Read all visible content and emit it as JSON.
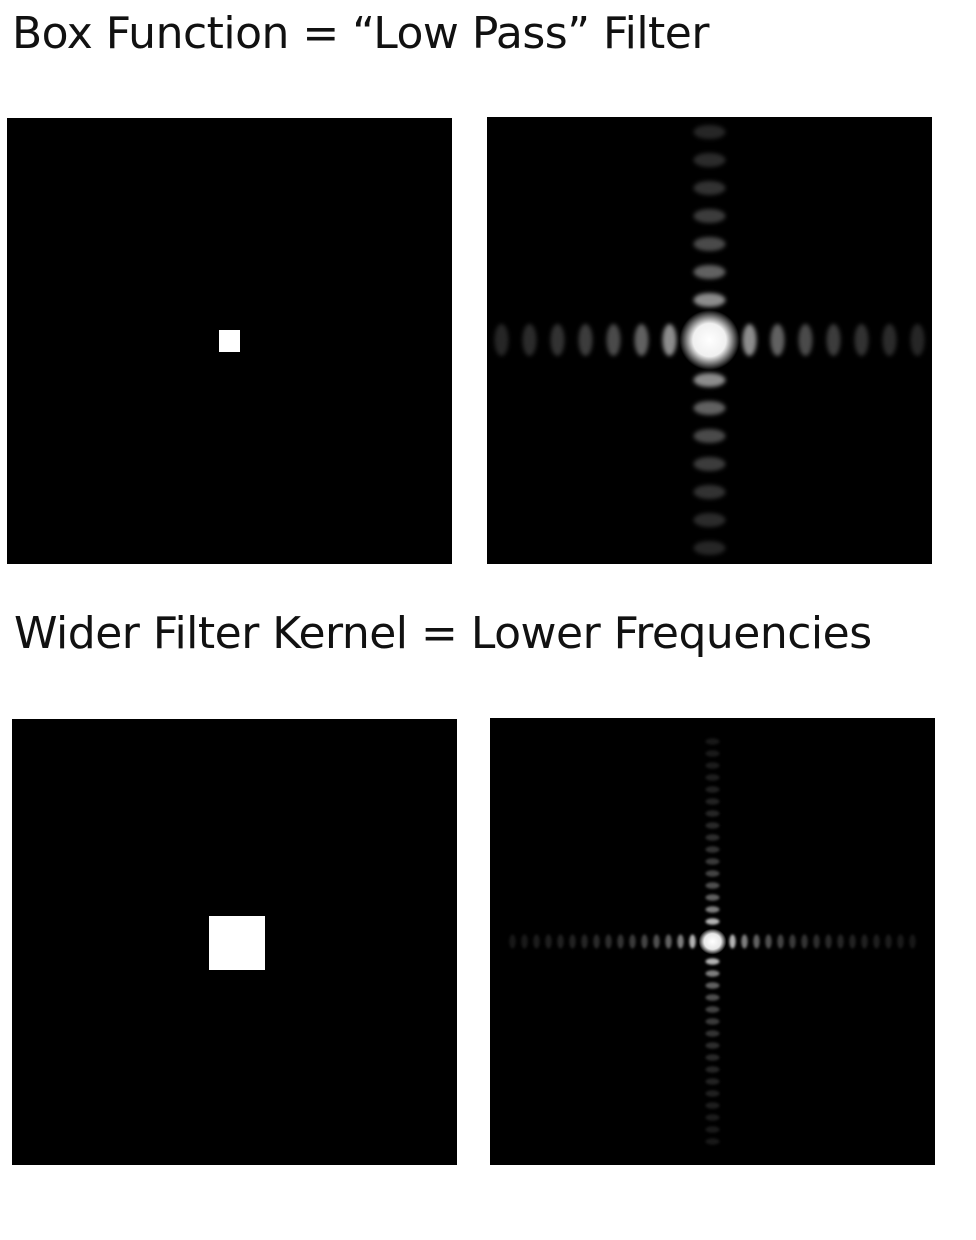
{
  "headings": {
    "top": "Box Function = “Low Pass” Filter",
    "bottom": "Wider Filter Kernel = Lower Frequencies"
  },
  "panels": [
    {
      "name": "narrow-box-function",
      "kind": "spatial",
      "box_width_fraction": 0.047
    },
    {
      "name": "narrow-box-spectrum",
      "kind": "frequency",
      "lobe_spacing_fraction": 0.063
    },
    {
      "name": "wide-box-function",
      "kind": "spatial",
      "box_width_fraction": 0.125
    },
    {
      "name": "wide-box-spectrum",
      "kind": "frequency",
      "lobe_spacing_fraction": 0.04
    }
  ],
  "colors": {
    "background": "#ffffff",
    "panel": "#000000",
    "signal": "#ffffff",
    "text": "#111111"
  }
}
